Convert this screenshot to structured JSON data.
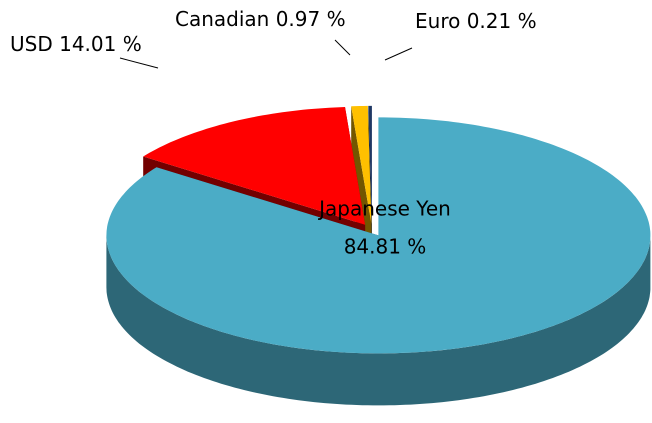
{
  "chart_data": {
    "type": "pie",
    "categories": [
      "Japanese Yen",
      "USD",
      "Canadian",
      "Euro"
    ],
    "values": [
      84.81,
      14.01,
      0.97,
      0.21
    ],
    "value_labels": [
      "84.81 %",
      "14.01 %",
      "0.97 %",
      "0.21 %"
    ],
    "colors": [
      "#4bacc6",
      "#ff0000",
      "#ffc000",
      "#1f3864"
    ]
  }
}
